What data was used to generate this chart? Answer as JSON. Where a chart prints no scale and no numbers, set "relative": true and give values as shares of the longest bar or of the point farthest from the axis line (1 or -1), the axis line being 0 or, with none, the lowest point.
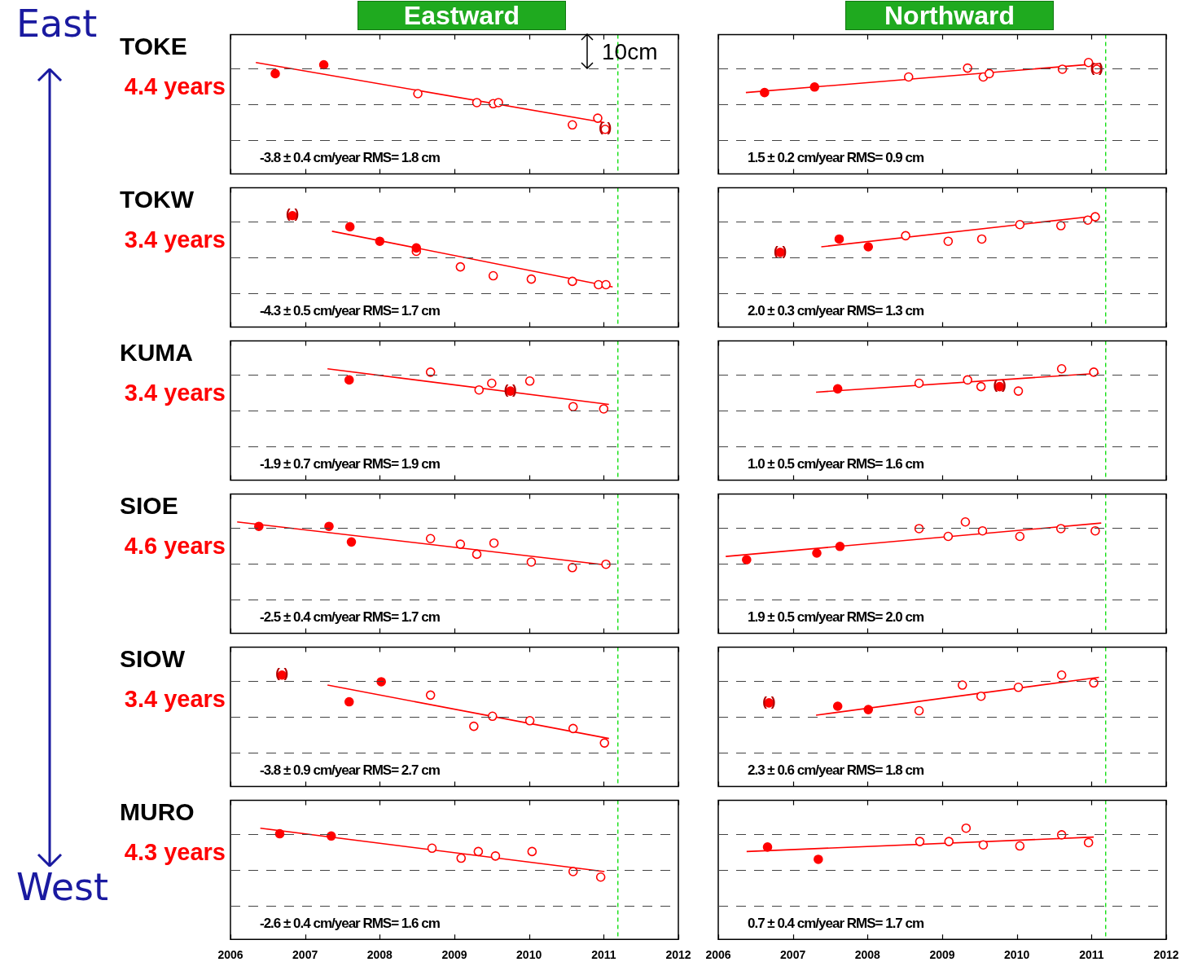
{
  "chart_data": [
    {
      "type": "scatter",
      "title": "TOKE",
      "subtitle": "4.4 years",
      "relative": true,
      "xlim": [
        2006,
        2012
      ],
      "xticks": [
        2006,
        2007,
        2008,
        2009,
        2010,
        2011,
        2012
      ],
      "tick_labels": false,
      "marker": "circle",
      "ref_lines": [
        {
          "axis": "x",
          "value": 2011.19,
          "color": "#00dd00",
          "line_style": "dashed"
        }
      ],
      "series": [
        {
          "type": "scatter",
          "color": "#ff0000",
          "x": [
            2006.6,
            2007.25
          ],
          "values": [
            0.9,
            0.98
          ]
        },
        {
          "type": "scatter",
          "color": "#ff0000",
          "x": [
            2008.51,
            2009.3,
            2009.52,
            2009.59,
            2010.58,
            2010.92,
            2011.02
          ],
          "values": [
            0.72,
            0.64,
            0.63,
            0.64,
            0.44,
            0.5,
            0.4
          ]
        },
        {
          "type": "line",
          "marker": "none",
          "color": "#ff0000",
          "x": [
            2006.34,
            2011.01
          ],
          "values": [
            1,
            0.46
          ]
        }
      ],
      "annotations": [
        "-3.8 ± 0.4 cm/year RMS= 1.8 cm",
        "Eastward",
        "10cm",
        {
          "text": "( )",
          "x": 2011.02,
          "y": 0.4
        }
      ]
    },
    {
      "type": "scatter",
      "relative": true,
      "xlim": [
        2006,
        2012
      ],
      "xticks": [
        2006,
        2007,
        2008,
        2009,
        2010,
        2011,
        2012
      ],
      "tick_labels": false,
      "marker": "circle",
      "ref_lines": [
        {
          "axis": "x",
          "value": 2011.19,
          "color": "#00dd00",
          "line_style": "dashed"
        }
      ],
      "series": [
        {
          "type": "scatter",
          "color": "#ff0000",
          "x": [
            2006.62,
            2007.29
          ],
          "values": [
            0.73,
            0.78
          ]
        },
        {
          "type": "scatter",
          "color": "#ff0000",
          "x": [
            2008.55,
            2009.34,
            2009.55,
            2009.63,
            2010.61,
            2010.96,
            2011.07
          ],
          "values": [
            0.87,
            0.95,
            0.87,
            0.9,
            0.94,
            1,
            0.94
          ]
        },
        {
          "type": "line",
          "marker": "none",
          "color": "#ff0000",
          "x": [
            2006.37,
            2011.1
          ],
          "values": [
            0.73,
            0.99
          ]
        }
      ],
      "annotations": [
        "1.5 ± 0.2 cm/year RMS= 0.9 cm",
        "Northward",
        {
          "text": "( )",
          "x": 2011.07,
          "y": 0.94
        }
      ]
    },
    {
      "type": "scatter",
      "title": "TOKW",
      "subtitle": "3.4 years",
      "relative": true,
      "xlim": [
        2006,
        2012
      ],
      "xticks": [
        2006,
        2007,
        2008,
        2009,
        2010,
        2011,
        2012
      ],
      "tick_labels": false,
      "marker": "circle",
      "ref_lines": [
        {
          "axis": "x",
          "value": 2011.19,
          "color": "#00dd00",
          "line_style": "dashed"
        }
      ],
      "series": [
        {
          "type": "scatter",
          "color": "#ff0000",
          "x": [
            2006.83,
            2007.6,
            2008.0,
            2008.49
          ],
          "values": [
            1,
            0.9,
            0.77,
            0.71
          ]
        },
        {
          "type": "scatter",
          "color": "#ff0000",
          "x": [
            2008.49,
            2009.08,
            2009.52,
            2010.03,
            2010.58,
            2010.93,
            2011.03
          ],
          "values": [
            0.68,
            0.54,
            0.46,
            0.43,
            0.41,
            0.38,
            0.38
          ]
        },
        {
          "type": "line",
          "marker": "none",
          "color": "#ff0000",
          "x": [
            2007.36,
            2011.12
          ],
          "values": [
            0.86,
            0.36
          ]
        }
      ],
      "annotations": [
        "-4.3 ± 0.5 cm/year RMS= 1.7 cm",
        {
          "text": "( )",
          "x": 2006.83,
          "y": 1
        }
      ]
    },
    {
      "type": "scatter",
      "relative": true,
      "xlim": [
        2006,
        2012
      ],
      "xticks": [
        2006,
        2007,
        2008,
        2009,
        2010,
        2011,
        2012
      ],
      "tick_labels": false,
      "marker": "circle",
      "ref_lines": [
        {
          "axis": "x",
          "value": 2011.19,
          "color": "#00dd00",
          "line_style": "dashed"
        }
      ],
      "series": [
        {
          "type": "scatter",
          "color": "#ff0000",
          "x": [
            2006.83,
            2007.62,
            2008.01
          ],
          "values": [
            0.67,
            0.79,
            0.72
          ]
        },
        {
          "type": "scatter",
          "color": "#ff0000",
          "x": [
            2008.51,
            2009.08,
            2009.53,
            2010.04,
            2010.59,
            2010.95,
            2011.05
          ],
          "values": [
            0.82,
            0.77,
            0.79,
            0.92,
            0.91,
            0.96,
            0.99
          ]
        },
        {
          "type": "line",
          "marker": "none",
          "color": "#ff0000",
          "x": [
            2007.38,
            2011.1
          ],
          "values": [
            0.72,
            1
          ]
        }
      ],
      "annotations": [
        "2.0 ± 0.3 cm/year RMS= 1.3 cm",
        {
          "text": "( )",
          "x": 2006.83,
          "y": 0.67
        }
      ]
    },
    {
      "type": "scatter",
      "title": "KUMA",
      "subtitle": "3.4 years",
      "relative": true,
      "xlim": [
        2006,
        2012
      ],
      "xticks": [
        2006,
        2007,
        2008,
        2009,
        2010,
        2011,
        2012
      ],
      "tick_labels": false,
      "marker": "circle",
      "ref_lines": [
        {
          "axis": "x",
          "value": 2011.19,
          "color": "#00dd00",
          "line_style": "dashed"
        }
      ],
      "series": [
        {
          "type": "scatter",
          "color": "#ff0000",
          "x": [
            2007.59,
            2009.75
          ],
          "values": [
            0.9,
            0.8
          ]
        },
        {
          "type": "scatter",
          "color": "#ff0000",
          "x": [
            2008.68,
            2009.33,
            2009.5,
            2010.01,
            2010.59,
            2011.0
          ],
          "values": [
            0.97,
            0.81,
            0.87,
            0.89,
            0.66,
            0.64
          ]
        },
        {
          "type": "line",
          "marker": "none",
          "color": "#ff0000",
          "x": [
            2007.3,
            2011.07
          ],
          "values": [
            1,
            0.68
          ]
        }
      ],
      "annotations": [
        "-1.9 ± 0.7 cm/year RMS= 1.9 cm",
        {
          "text": "( )",
          "x": 2009.75,
          "y": 0.8
        }
      ]
    },
    {
      "type": "scatter",
      "relative": true,
      "xlim": [
        2006,
        2012
      ],
      "xticks": [
        2006,
        2007,
        2008,
        2009,
        2010,
        2011,
        2012
      ],
      "tick_labels": false,
      "marker": "circle",
      "ref_lines": [
        {
          "axis": "x",
          "value": 2011.19,
          "color": "#00dd00",
          "line_style": "dashed"
        }
      ],
      "series": [
        {
          "type": "scatter",
          "color": "#ff0000",
          "x": [
            2007.6,
            2009.77
          ],
          "values": [
            0.82,
            0.84
          ]
        },
        {
          "type": "scatter",
          "color": "#ff0000",
          "x": [
            2008.69,
            2009.34,
            2009.52,
            2010.02,
            2010.6,
            2011.03
          ],
          "values": [
            0.87,
            0.9,
            0.84,
            0.8,
            1,
            0.97
          ]
        },
        {
          "type": "line",
          "marker": "none",
          "color": "#ff0000",
          "x": [
            2007.31,
            2011.1
          ],
          "values": [
            0.79,
            0.96
          ]
        }
      ],
      "annotations": [
        "1.0 ± 0.5 cm/year RMS= 1.6 cm",
        {
          "text": "( )",
          "x": 2009.77,
          "y": 0.84
        }
      ]
    },
    {
      "type": "scatter",
      "title": "SIOE",
      "subtitle": "4.6 years",
      "relative": true,
      "xlim": [
        2006,
        2012
      ],
      "xticks": [
        2006,
        2007,
        2008,
        2009,
        2010,
        2011,
        2012
      ],
      "tick_labels": false,
      "marker": "circle",
      "ref_lines": [
        {
          "axis": "x",
          "value": 2011.19,
          "color": "#00dd00",
          "line_style": "dashed"
        }
      ],
      "series": [
        {
          "type": "scatter",
          "color": "#ff0000",
          "x": [
            2006.38,
            2007.32,
            2007.62
          ],
          "values": [
            0.96,
            0.96,
            0.82
          ]
        },
        {
          "type": "scatter",
          "color": "#ff0000",
          "x": [
            2008.68,
            2009.08,
            2009.3,
            2009.53,
            2010.03,
            2010.58,
            2011.03
          ],
          "values": [
            0.85,
            0.8,
            0.71,
            0.81,
            0.64,
            0.59,
            0.62
          ]
        },
        {
          "type": "line",
          "marker": "none",
          "color": "#ff0000",
          "x": [
            2006.09,
            2011.07
          ],
          "values": [
            1,
            0.61
          ]
        }
      ],
      "annotations": [
        "-2.5 ± 0.4 cm/year RMS= 1.7 cm"
      ]
    },
    {
      "type": "scatter",
      "relative": true,
      "xlim": [
        2006,
        2012
      ],
      "xticks": [
        2006,
        2007,
        2008,
        2009,
        2010,
        2011,
        2012
      ],
      "tick_labels": false,
      "marker": "circle",
      "ref_lines": [
        {
          "axis": "x",
          "value": 2011.19,
          "color": "#00dd00",
          "line_style": "dashed"
        }
      ],
      "series": [
        {
          "type": "scatter",
          "color": "#ff0000",
          "x": [
            2006.38,
            2007.32,
            2007.63
          ],
          "values": [
            0.66,
            0.72,
            0.78
          ]
        },
        {
          "type": "scatter",
          "color": "#ff0000",
          "x": [
            2008.69,
            2009.08,
            2009.31,
            2009.54,
            2010.04,
            2010.59,
            2011.05
          ],
          "values": [
            0.94,
            0.87,
            1,
            0.92,
            0.87,
            0.94,
            0.92
          ]
        },
        {
          "type": "line",
          "marker": "none",
          "color": "#ff0000",
          "x": [
            2006.1,
            2011.13
          ],
          "values": [
            0.69,
            0.99
          ]
        }
      ],
      "annotations": [
        "1.9 ± 0.5 cm/year RMS= 2.0 cm"
      ]
    },
    {
      "type": "scatter",
      "title": "SIOW",
      "subtitle": "3.4 years",
      "relative": true,
      "xlim": [
        2006,
        2012
      ],
      "xticks": [
        2006,
        2007,
        2008,
        2009,
        2010,
        2011,
        2012
      ],
      "tick_labels": false,
      "marker": "circle",
      "ref_lines": [
        {
          "axis": "x",
          "value": 2011.19,
          "color": "#00dd00",
          "line_style": "dashed"
        }
      ],
      "series": [
        {
          "type": "scatter",
          "color": "#ff0000",
          "x": [
            2006.69,
            2007.59,
            2008.02
          ],
          "values": [
            1,
            0.76,
            0.94
          ]
        },
        {
          "type": "scatter",
          "color": "#ff0000",
          "x": [
            2008.68,
            2009.26,
            2009.51,
            2010.01,
            2010.59,
            2011.01
          ],
          "values": [
            0.82,
            0.54,
            0.63,
            0.59,
            0.52,
            0.39
          ]
        },
        {
          "type": "line",
          "marker": "none",
          "color": "#ff0000",
          "x": [
            2007.3,
            2011.07
          ],
          "values": [
            0.91,
            0.43
          ]
        }
      ],
      "annotations": [
        "-3.8 ± 0.9 cm/year RMS= 2.7 cm",
        {
          "text": "( )",
          "x": 2006.69,
          "y": 1
        }
      ]
    },
    {
      "type": "scatter",
      "relative": true,
      "xlim": [
        2006,
        2012
      ],
      "xticks": [
        2006,
        2007,
        2008,
        2009,
        2010,
        2011,
        2012
      ],
      "tick_labels": false,
      "marker": "circle",
      "ref_lines": [
        {
          "axis": "x",
          "value": 2011.19,
          "color": "#00dd00",
          "line_style": "dashed"
        }
      ],
      "series": [
        {
          "type": "scatter",
          "color": "#ff0000",
          "x": [
            2006.68,
            2007.6,
            2008.01
          ],
          "values": [
            0.75,
            0.72,
            0.69
          ]
        },
        {
          "type": "scatter",
          "color": "#ff0000",
          "x": [
            2008.69,
            2009.27,
            2009.52,
            2010.02,
            2010.6,
            2011.03
          ],
          "values": [
            0.68,
            0.91,
            0.81,
            0.89,
            1,
            0.93
          ]
        },
        {
          "type": "line",
          "marker": "none",
          "color": "#ff0000",
          "x": [
            2007.31,
            2011.1
          ],
          "values": [
            0.64,
            0.98
          ]
        }
      ],
      "annotations": [
        "2.3 ± 0.6 cm/year RMS= 1.8 cm",
        {
          "text": "( )",
          "x": 2006.68,
          "y": 0.75
        }
      ]
    },
    {
      "type": "scatter",
      "title": "MURO",
      "subtitle": "4.3 years",
      "relative": true,
      "xlim": [
        2006,
        2012
      ],
      "xticks": [
        2006,
        2007,
        2008,
        2009,
        2010,
        2011,
        2012
      ],
      "tick_labels": "x",
      "marker": "circle",
      "ref_lines": [
        {
          "axis": "x",
          "value": 2011.19,
          "color": "#00dd00",
          "line_style": "dashed"
        }
      ],
      "series": [
        {
          "type": "scatter",
          "color": "#ff0000",
          "x": [
            2006.66,
            2007.35
          ],
          "values": [
            0.95,
            0.93
          ]
        },
        {
          "type": "scatter",
          "color": "#ff0000",
          "x": [
            2008.7,
            2009.09,
            2009.32,
            2009.55,
            2010.04,
            2010.59,
            2010.96
          ],
          "values": [
            0.82,
            0.73,
            0.79,
            0.75,
            0.79,
            0.61,
            0.56
          ]
        },
        {
          "type": "line",
          "marker": "none",
          "color": "#ff0000",
          "x": [
            2006.4,
            2011.01
          ],
          "values": [
            1,
            0.61
          ]
        }
      ],
      "annotations": [
        "-2.6 ± 0.4 cm/year RMS= 1.6 cm"
      ]
    },
    {
      "type": "scatter",
      "relative": true,
      "xlim": [
        2006,
        2012
      ],
      "xticks": [
        2006,
        2007,
        2008,
        2009,
        2010,
        2011,
        2012
      ],
      "tick_labels": "x",
      "marker": "circle",
      "ref_lines": [
        {
          "axis": "x",
          "value": 2011.19,
          "color": "#00dd00",
          "line_style": "dashed"
        }
      ],
      "series": [
        {
          "type": "scatter",
          "color": "#ff0000",
          "x": [
            2006.66,
            2007.34
          ],
          "values": [
            0.83,
            0.72
          ]
        },
        {
          "type": "scatter",
          "color": "#ff0000",
          "x": [
            2008.7,
            2009.09,
            2009.32,
            2009.55,
            2010.04,
            2010.6,
            2010.96
          ],
          "values": [
            0.88,
            0.88,
            1,
            0.85,
            0.84,
            0.94,
            0.87
          ]
        },
        {
          "type": "line",
          "marker": "none",
          "color": "#ff0000",
          "x": [
            2006.38,
            2011.03
          ],
          "values": [
            0.79,
            0.92
          ]
        }
      ],
      "annotations": [
        "0.7 ± 0.4 cm/year RMS= 1.7 cm"
      ]
    },
    {
      "type": "other",
      "annotations": [
        "East",
        "West"
      ]
    }
  ]
}
